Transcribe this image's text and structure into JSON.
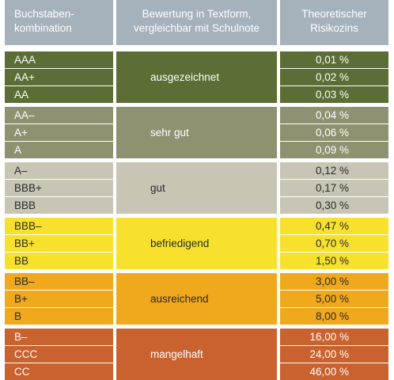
{
  "header": {
    "col1_line1": "Buchstaben-",
    "col1_line2": "kombination",
    "col2_line1": "Bewertung in Textform,",
    "col2_line2": "vergleichbar mit Schulnote",
    "col3_line1": "Theoretischer",
    "col3_line2": "Risikozins"
  },
  "groups": [
    {
      "label": "ausgezeichnet",
      "color": "#5b6e35",
      "text_color": "#ffffff",
      "rows": [
        {
          "rating": "AAA",
          "rate": "0,01 %"
        },
        {
          "rating": "AA+",
          "rate": "0,02 %"
        },
        {
          "rating": "AA",
          "rate": "0,03 %"
        }
      ]
    },
    {
      "label": "sehr gut",
      "color": "#8e9271",
      "text_color": "#ffffff",
      "rows": [
        {
          "rating": "AA–",
          "rate": "0,04 %"
        },
        {
          "rating": "A+",
          "rate": "0,06 %"
        },
        {
          "rating": "A",
          "rate": "0,09 %"
        }
      ]
    },
    {
      "label": "gut",
      "color": "#c8c5b4",
      "text_color": "#2a2a2a",
      "rows": [
        {
          "rating": "A–",
          "rate": "0,12 %"
        },
        {
          "rating": "BBB+",
          "rate": "0,17 %"
        },
        {
          "rating": "BBB",
          "rate": "0,30 %"
        }
      ]
    },
    {
      "label": "befriedigend",
      "color": "#f8e12d",
      "text_color": "#2a2a2a",
      "rows": [
        {
          "rating": "BBB–",
          "rate": "0,47 %"
        },
        {
          "rating": "BB+",
          "rate": "0,70 %"
        },
        {
          "rating": "BB",
          "rate": "1,50 %"
        }
      ]
    },
    {
      "label": "ausreichend",
      "color": "#f0a81c",
      "text_color": "#2a2a2a",
      "rows": [
        {
          "rating": "BB–",
          "rate": "3,00 %"
        },
        {
          "rating": "B+",
          "rate": "5,00 %"
        },
        {
          "rating": "B",
          "rate": "8,00 %"
        }
      ]
    },
    {
      "label": "mangelhaft",
      "color": "#c9622f",
      "text_color": "#ffffff",
      "rows": [
        {
          "rating": "B–",
          "rate": "16,00 %"
        },
        {
          "rating": "CCC",
          "rate": "24,00 %"
        },
        {
          "rating": "CC",
          "rate": "46,00 %"
        }
      ]
    }
  ]
}
